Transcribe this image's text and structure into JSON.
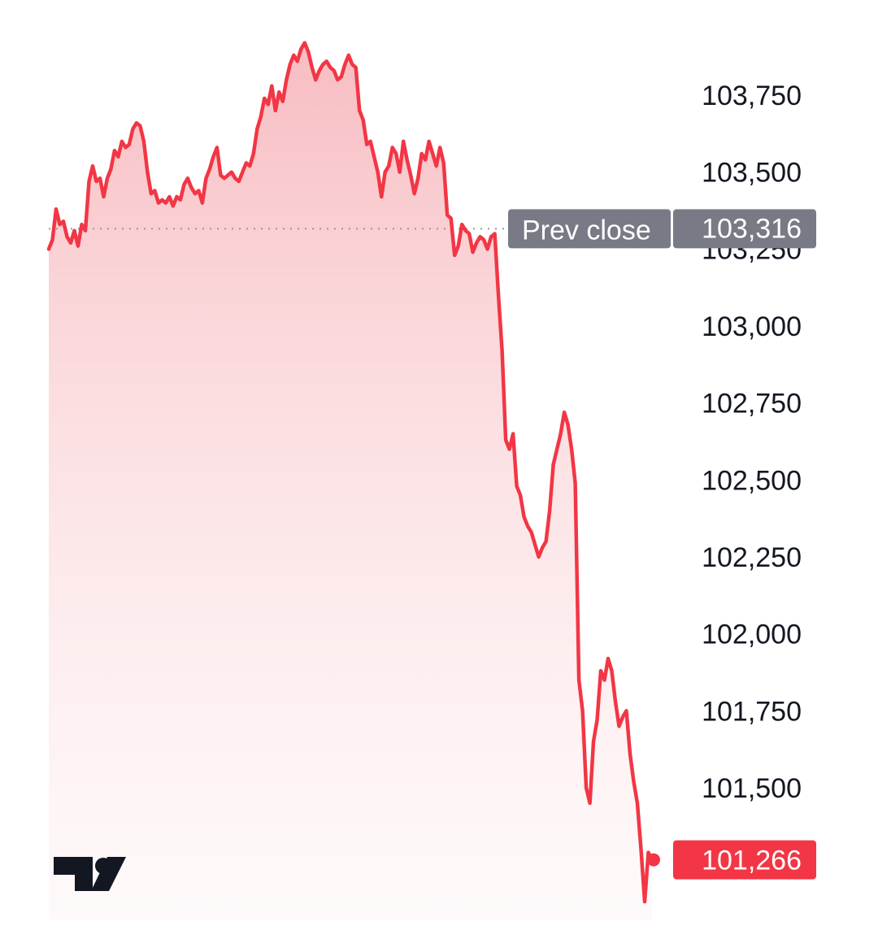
{
  "chart_data": {
    "type": "area",
    "title": "",
    "xlabel": "",
    "ylabel": "",
    "ylim": [
      101080,
      103980
    ],
    "y_ticks": [
      "103,750",
      "103,500",
      "103,250",
      "103,000",
      "102,750",
      "102,500",
      "102,250",
      "102,000",
      "101,750",
      "101,500"
    ],
    "y_tick_values": [
      103750,
      103500,
      103250,
      103000,
      102750,
      102500,
      102250,
      102000,
      101750,
      101500
    ],
    "prev_close": {
      "label": "Prev close",
      "value": 103316,
      "value_label": "103,316"
    },
    "last_price": {
      "value": 101266,
      "value_label": "101,266"
    },
    "line_color": "#f23645",
    "fill_color_top": "#f7b9be",
    "prev_close_badge_color": "#787b86",
    "series": [
      {
        "values": [
          103250,
          103280,
          103380,
          103330,
          103340,
          103290,
          103270,
          103310,
          103260,
          103330,
          103310,
          103470,
          103520,
          103470,
          103480,
          103420,
          103480,
          103510,
          103570,
          103550,
          103600,
          103580,
          103590,
          103640,
          103660,
          103650,
          103600,
          103500,
          103430,
          103440,
          103400,
          103410,
          103400,
          103420,
          103390,
          103420,
          103410,
          103460,
          103480,
          103450,
          103430,
          103440,
          103400,
          103480,
          103510,
          103550,
          103580,
          103490,
          103480,
          103490,
          103500,
          103480,
          103470,
          103500,
          103530,
          103520,
          103560,
          103640,
          103680,
          103740,
          103720,
          103780,
          103700,
          103760,
          103730,
          103800,
          103850,
          103880,
          103860,
          103900,
          103920,
          103890,
          103840,
          103800,
          103830,
          103850,
          103860,
          103840,
          103830,
          103800,
          103810,
          103850,
          103880,
          103850,
          103840,
          103700,
          103670,
          103590,
          103600,
          103550,
          103500,
          103420,
          103500,
          103520,
          103580,
          103560,
          103500,
          103600,
          103540,
          103490,
          103430,
          103480,
          103560,
          103540,
          103600,
          103560,
          103520,
          103580,
          103530,
          103360,
          103350,
          103230,
          103260,
          103330,
          103310,
          103300,
          103240,
          103270,
          103290,
          103280,
          103250,
          103290,
          103300,
          103100,
          102920,
          102630,
          102600,
          102650,
          102480,
          102450,
          102380,
          102350,
          102330,
          102290,
          102250,
          102280,
          102300,
          102400,
          102550,
          102600,
          102650,
          102720,
          102680,
          102600,
          102490,
          101850,
          101750,
          101500,
          101450,
          101650,
          101720,
          101880,
          101850,
          101920,
          101880,
          101780,
          101700,
          101730,
          101750,
          101610,
          101520,
          101450,
          101300,
          101130,
          101290,
          101266
        ]
      }
    ]
  },
  "branding": {
    "logo": "tradingview-logo"
  }
}
